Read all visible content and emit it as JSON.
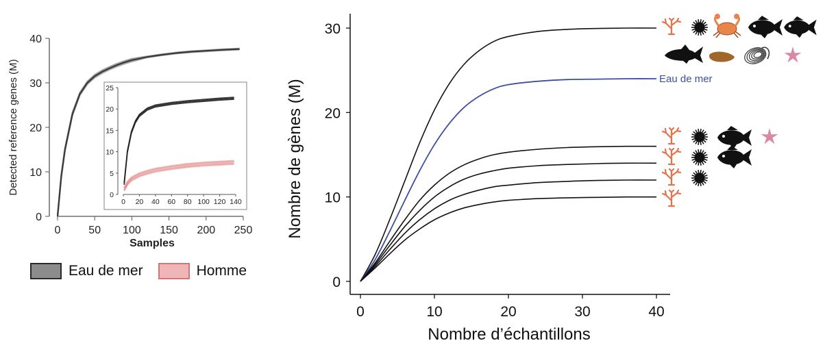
{
  "chart_data": [
    {
      "type": "line",
      "xlabel": "Samples",
      "ylabel": "Detected reference genes (M)",
      "xlim": [
        0,
        250
      ],
      "ylim": [
        0,
        40
      ],
      "x_ticks": [
        0,
        50,
        100,
        150,
        200,
        250
      ],
      "y_ticks": [
        0,
        10,
        20,
        30,
        40
      ],
      "series": [
        {
          "name": "Eau de mer",
          "color": "#3a3a3a",
          "x": [
            0,
            5,
            10,
            20,
            30,
            40,
            50,
            60,
            70,
            80,
            90,
            100,
            120,
            140,
            160,
            180,
            200,
            220,
            245
          ],
          "values": [
            0,
            9,
            15,
            23,
            27.5,
            30,
            31.5,
            32.5,
            33.3,
            34,
            34.6,
            35.1,
            35.8,
            36.3,
            36.7,
            37,
            37.2,
            37.4,
            37.6
          ]
        }
      ],
      "legend": [
        {
          "label": "Eau de mer",
          "color": "#8c8c8c"
        },
        {
          "label": "Homme",
          "color": "#eeb6b6"
        }
      ],
      "inset": {
        "xlim": [
          0,
          140
        ],
        "ylim": [
          0,
          25
        ],
        "x_ticks": [
          0,
          20,
          40,
          60,
          80,
          100,
          120,
          140
        ],
        "y_ticks": [
          0,
          5,
          10,
          15,
          20,
          25
        ],
        "series": [
          {
            "name": "Eau de mer",
            "color": "#222222",
            "x": [
              1,
              5,
              10,
              15,
              20,
              30,
              40,
              60,
              80,
              100,
              120,
              138
            ],
            "values": [
              2.5,
              10,
              14.5,
              17,
              18.5,
              20,
              20.7,
              21.3,
              21.7,
              22,
              22.3,
              22.5
            ]
          },
          {
            "name": "Homme",
            "color": "#e07f7f",
            "x": [
              1,
              5,
              10,
              20,
              30,
              40,
              60,
              80,
              100,
              120,
              138
            ],
            "values": [
              1.2,
              2.6,
              3.6,
              4.6,
              5.2,
              5.7,
              6.3,
              6.8,
              7.1,
              7.3,
              7.5
            ]
          }
        ]
      }
    },
    {
      "type": "line",
      "xlabel": "Nombre d’échantillons",
      "ylabel": "Nombre de gènes (M)",
      "xlim": [
        0,
        40
      ],
      "ylim": [
        0,
        30
      ],
      "x_ticks": [
        0,
        10,
        20,
        30,
        40
      ],
      "y_ticks": [
        0,
        10,
        20,
        30
      ],
      "series": [
        {
          "name": "curve-30",
          "color": "#111111",
          "plateau": 30,
          "x": [
            0,
            2,
            4,
            6,
            8,
            10,
            12,
            14,
            16,
            18,
            20,
            24,
            28,
            32,
            36,
            40
          ],
          "values": [
            0,
            3.2,
            7.4,
            11.9,
            16.4,
            20.3,
            23.4,
            25.7,
            27.3,
            28.4,
            29.0,
            29.6,
            29.85,
            29.95,
            30.0,
            30.0
          ]
        },
        {
          "name": "Eau de mer",
          "color": "#3b4fa0",
          "plateau": 24,
          "label": "Eau de mer",
          "x": [
            0,
            2,
            4,
            6,
            8,
            10,
            12,
            14,
            16,
            18,
            20,
            24,
            28,
            32,
            36,
            40
          ],
          "values": [
            0,
            2.6,
            6.0,
            9.6,
            13.1,
            16.2,
            18.7,
            20.6,
            21.9,
            22.8,
            23.3,
            23.7,
            23.9,
            23.95,
            24.0,
            24.0
          ]
        },
        {
          "name": "curve-16",
          "color": "#111111",
          "plateau": 16,
          "x": [
            0,
            2,
            4,
            6,
            8,
            10,
            12,
            14,
            16,
            18,
            20,
            24,
            28,
            32,
            36,
            40
          ],
          "values": [
            0,
            2.2,
            4.8,
            7.3,
            9.6,
            11.4,
            12.8,
            13.8,
            14.5,
            15.0,
            15.3,
            15.65,
            15.85,
            15.95,
            16.0,
            16.0
          ]
        },
        {
          "name": "curve-14",
          "color": "#111111",
          "plateau": 14,
          "x": [
            0,
            2,
            4,
            6,
            8,
            10,
            12,
            14,
            16,
            18,
            20,
            24,
            28,
            32,
            36,
            40
          ],
          "values": [
            0,
            2.0,
            4.3,
            6.5,
            8.4,
            10.0,
            11.2,
            12.1,
            12.7,
            13.1,
            13.4,
            13.7,
            13.85,
            13.95,
            14.0,
            14.0
          ]
        },
        {
          "name": "curve-12",
          "color": "#111111",
          "plateau": 12,
          "x": [
            0,
            2,
            4,
            6,
            8,
            10,
            12,
            14,
            16,
            18,
            20,
            24,
            28,
            32,
            36,
            40
          ],
          "values": [
            0,
            1.8,
            3.8,
            5.7,
            7.3,
            8.6,
            9.6,
            10.3,
            10.8,
            11.2,
            11.4,
            11.7,
            11.85,
            11.95,
            12.0,
            12.0
          ]
        },
        {
          "name": "curve-10",
          "color": "#111111",
          "plateau": 10,
          "x": [
            0,
            2,
            4,
            6,
            8,
            10,
            12,
            14,
            16,
            18,
            20,
            24,
            28,
            32,
            36,
            40
          ],
          "values": [
            0,
            1.6,
            3.3,
            4.9,
            6.2,
            7.3,
            8.1,
            8.7,
            9.1,
            9.4,
            9.6,
            9.8,
            9.9,
            9.95,
            10.0,
            10.0
          ]
        }
      ],
      "organism_rows": [
        {
          "plateau": 30,
          "icons": [
            "coral-icon",
            "sea-urchin-icon",
            "crab-icon",
            "fish-icon",
            "fish-icon"
          ]
        },
        {
          "plateau": 30,
          "icons": [
            "tuna-icon",
            "sea-cucumber-icon",
            "mussel-icon",
            "starfish-icon"
          ]
        },
        {
          "plateau": 16,
          "icons": [
            "coral-icon",
            "sea-urchin-icon",
            "fish-icon",
            "starfish-icon"
          ]
        },
        {
          "plateau": 14,
          "icons": [
            "coral-icon",
            "sea-urchin-icon",
            "fish-icon"
          ]
        },
        {
          "plateau": 12,
          "icons": [
            "coral-icon",
            "sea-urchin-icon"
          ]
        },
        {
          "plateau": 10,
          "icons": [
            "coral-icon"
          ]
        }
      ],
      "icon_colors": {
        "coral": "#e8714a",
        "urchin": "#111111",
        "crab": "#e8854a",
        "fish": "#111111",
        "sea_cucumber": "#a0662a",
        "mussel": "#333333",
        "starfish": "#d98aa3"
      }
    }
  ]
}
